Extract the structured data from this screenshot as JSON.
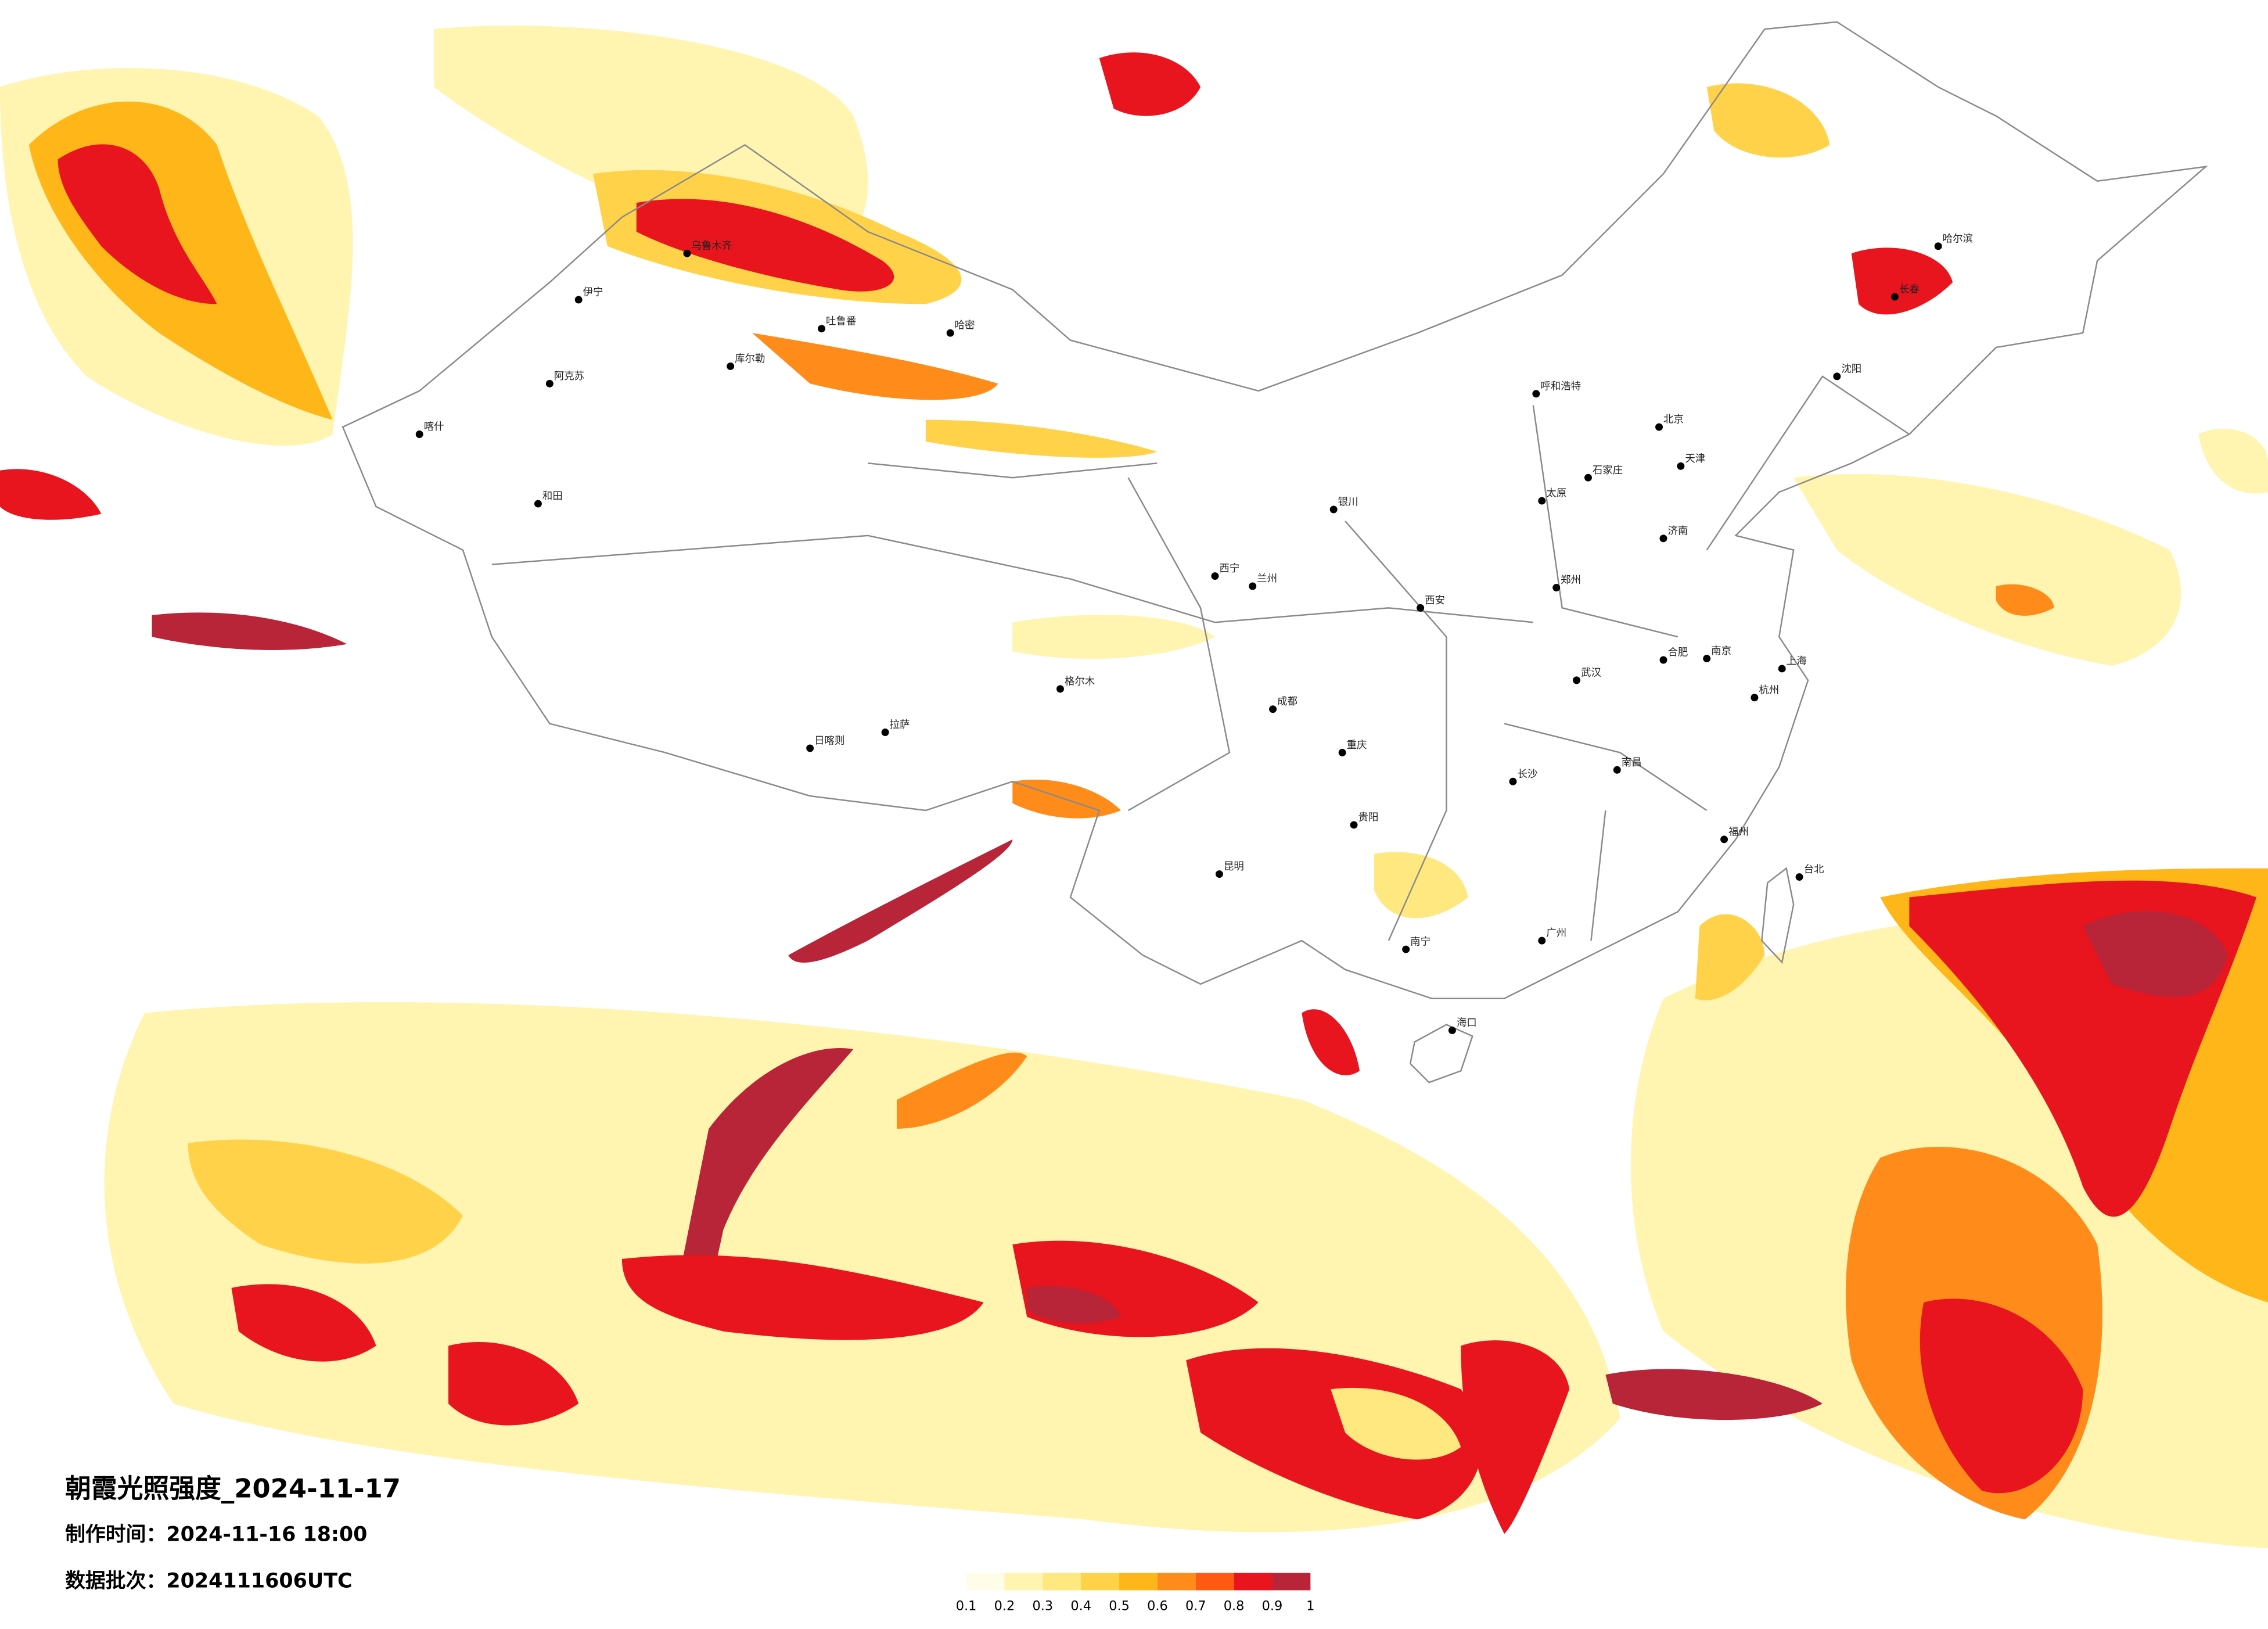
{
  "title": "朝霞光照强度_2024-11-17",
  "production_time": "制作时间：2024-11-16 18:00",
  "batch": "数据批次：2024111606UTC",
  "legend": {
    "ticks": [
      0.1,
      0.2,
      0.3,
      0.4,
      0.5,
      0.6,
      0.7,
      0.8,
      0.9,
      1
    ],
    "colors": [
      "#fffde8",
      "#fff4b0",
      "#ffe880",
      "#ffd24a",
      "#ffb619",
      "#ff8c1a",
      "#ff5a14",
      "#e8141e",
      "#b82438"
    ]
  },
  "cities": [
    "乌鲁木齐",
    "伊宁",
    "阿克苏",
    "喀什",
    "和田",
    "库尔勒",
    "哈密",
    "吐鲁番",
    "格尔木",
    "拉萨",
    "日喀则",
    "西宁",
    "兰州",
    "银川",
    "呼和浩特",
    "北京",
    "天津",
    "石家庄",
    "太原",
    "济南",
    "郑州",
    "西安",
    "成都",
    "重庆",
    "武汉",
    "合肥",
    "南京",
    "上海",
    "杭州",
    "南昌",
    "长沙",
    "贵阳",
    "昆明",
    "南宁",
    "广州",
    "福州",
    "台北",
    "海口",
    "沈阳",
    "长春",
    "哈尔滨"
  ]
}
